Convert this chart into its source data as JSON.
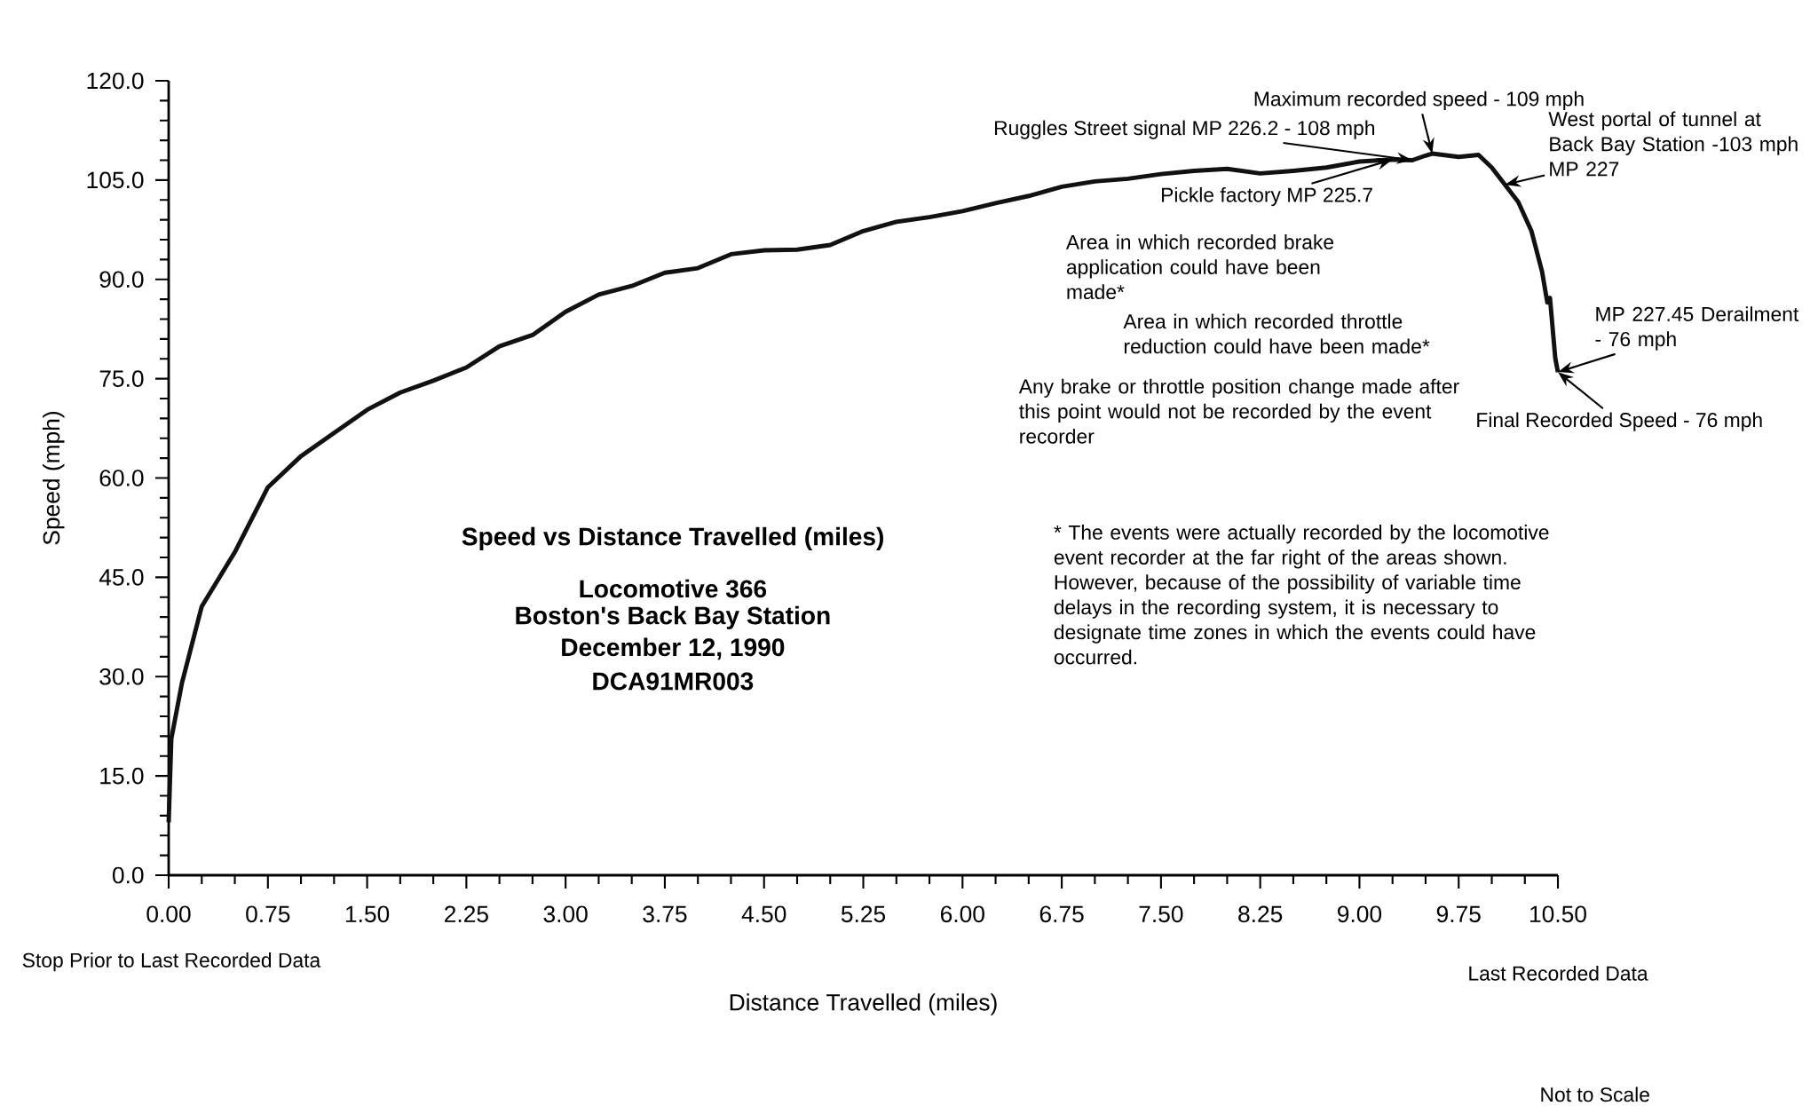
{
  "chart_data": {
    "type": "line",
    "title": "Speed vs Distance Travelled (miles)",
    "subtitle": "Locomotive 366",
    "xlabel": "Distance   Travelled   (miles)",
    "ylabel": "Speed   (mph)",
    "x": [
      0,
      0.02,
      0.1,
      0.25,
      0.5,
      0.75,
      1.0,
      1.25,
      1.5,
      1.75,
      2.0,
      2.25,
      2.5,
      2.75,
      3.0,
      3.25,
      3.5,
      3.75,
      4.0,
      4.25,
      4.5,
      4.75,
      5.0,
      5.25,
      5.5,
      5.75,
      6.0,
      6.25,
      6.5,
      6.75,
      7.0,
      7.25,
      7.5,
      7.75,
      8.0,
      8.25,
      8.5,
      8.75,
      9.0,
      9.25,
      9.4,
      9.5,
      9.55,
      9.75,
      9.9,
      10.0,
      10.1,
      10.2,
      10.3,
      10.38,
      10.42,
      10.44,
      10.48,
      10.5
    ],
    "series": [
      {
        "color": "#111111",
        "values": [
          8,
          20.6,
          29,
          40.6,
          48.8,
          58.6,
          63.3,
          66.8,
          70.3,
          72.9,
          74.7,
          76.7,
          79.9,
          81.6,
          85.1,
          87.7,
          89,
          91,
          91.7,
          93.8,
          94.4,
          94.5,
          95.2,
          97.3,
          98.7,
          99.4,
          100.3,
          101.5,
          102.6,
          104,
          104.8,
          105.2,
          105.9,
          106.4,
          106.7,
          106,
          106.4,
          106.9,
          107.8,
          108.1,
          108,
          108.7,
          109,
          108.5,
          108.8,
          106.9,
          104.3,
          101.7,
          97.3,
          91.2,
          86.5,
          87.2,
          78.1,
          76
        ]
      }
    ],
    "xlim": [
      0,
      10.5
    ],
    "ylim": [
      0,
      120
    ],
    "xticks": [
      {
        "value": 0,
        "label": "0.00"
      },
      {
        "value": 0.75,
        "label": "0.75"
      },
      {
        "value": 1.5,
        "label": "1.50"
      },
      {
        "value": 2.25,
        "label": "2.25"
      },
      {
        "value": 3,
        "label": "3.00"
      },
      {
        "value": 3.75,
        "label": "3.75"
      },
      {
        "value": 4.5,
        "label": "4.50"
      },
      {
        "value": 5.25,
        "label": "5.25"
      },
      {
        "value": 6,
        "label": "6.00"
      },
      {
        "value": 6.75,
        "label": "6.75"
      },
      {
        "value": 7.5,
        "label": "7.50"
      },
      {
        "value": 8.25,
        "label": "8.25"
      },
      {
        "value": 9,
        "label": "9.00"
      },
      {
        "value": 9.75,
        "label": "9.75"
      },
      {
        "value": 10.5,
        "label": "10.50"
      }
    ],
    "yticks": [
      {
        "value": 0,
        "label": "0.0"
      },
      {
        "value": 15,
        "label": "15.0"
      },
      {
        "value": 30,
        "label": "30.0"
      },
      {
        "value": 45,
        "label": "45.0"
      },
      {
        "value": 60,
        "label": "60.0"
      },
      {
        "value": 75,
        "label": "75.0"
      },
      {
        "value": 90,
        "label": "90.0"
      },
      {
        "value": 105,
        "label": "105.0"
      },
      {
        "value": 120,
        "label": "120.0"
      }
    ],
    "grid": false,
    "marker": "none",
    "line_style": "solid",
    "annotations": [
      {
        "text": "Maximum recorded speed - 109 mph",
        "x": 9.55,
        "y": 109
      },
      {
        "text": "Ruggles Street signal MP 226.2 - 108 mph",
        "x": 9.4,
        "y": 108
      },
      {
        "text": "West portal of tunnel at Back Bay Station -103 mph MP 227",
        "x": 10.1,
        "y": 104.3
      },
      {
        "text": "Pickle factory MP 225.7",
        "x": 9.25,
        "y": 108.1
      },
      "Area in which recorded brake application could have been made*",
      "Area in which recorded throttle reduction could have been made*",
      "Any brake or throttle position change made after this point would not be recorded by the event recorder",
      {
        "text": "MP 227.45 Derailment - 76 mph",
        "x": 10.5,
        "y": 76
      },
      {
        "text": "Final Recorded Speed - 76 mph",
        "x": 10.5,
        "y": 76
      },
      "* The events were actually recorded by the locomotive event recorder at the far right of the areas shown. However, because of the possibility of variable time delays in the recording system, it is necessary to designate time zones in which the events could have occurred.",
      "Boston's Back Bay Station",
      "December 12, 1990",
      "DCA91MR003",
      "Stop Prior to Last Recorded Data",
      "Last Recorded Data",
      "Not to Scale"
    ]
  }
}
